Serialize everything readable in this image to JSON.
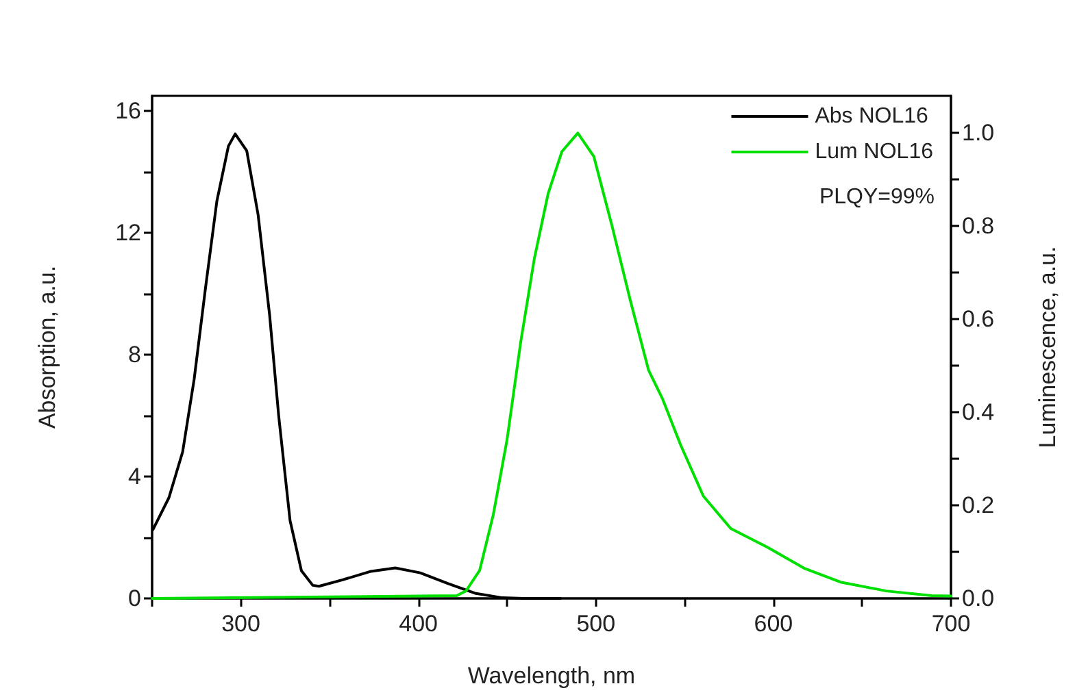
{
  "chart_data": {
    "type": "line",
    "xlabel": "Wavelength, nm",
    "ylabel": "Absorption, a.u.",
    "y2label": "Luminescence, a.u.",
    "annotations": [
      "PLQY=99%"
    ],
    "xlim": [
      250,
      700
    ],
    "xticks": [
      {
        "value": 250,
        "label": null
      },
      300,
      {
        "value": 350,
        "label": null
      },
      400,
      {
        "value": 450,
        "label": null
      },
      500,
      {
        "value": 550,
        "label": null
      },
      600,
      {
        "value": 650,
        "label": null
      },
      700
    ],
    "ylim": [
      0,
      16.5
    ],
    "yticks": [
      0,
      {
        "value": 2,
        "label": null
      },
      4,
      {
        "value": 6,
        "label": null
      },
      8,
      {
        "value": 10,
        "label": null
      },
      12,
      {
        "value": 14,
        "label": null
      },
      16
    ],
    "y2lim": [
      0,
      1.08
    ],
    "y2ticks": [
      {
        "value": 0,
        "label": "0.0"
      },
      {
        "value": 0.1,
        "label": null
      },
      {
        "value": 0.2,
        "label": "0.2"
      },
      {
        "value": 0.3,
        "label": null
      },
      {
        "value": 0.4,
        "label": "0.4"
      },
      {
        "value": 0.5,
        "label": null
      },
      {
        "value": 0.6,
        "label": "0.6"
      },
      {
        "value": 0.7,
        "label": null
      },
      {
        "value": 0.8,
        "label": "0.8"
      },
      {
        "value": 0.9,
        "label": null
      },
      {
        "value": 1.0,
        "label": "1.0"
      }
    ],
    "legend": "top right",
    "grid": false,
    "marker": "none",
    "line_style": "solid",
    "series": [
      {
        "name": "Abs NOL16",
        "color": "#000000",
        "x": [
          250.5,
          259.5,
          267.2,
          273.7,
          280.1,
          286.5,
          293,
          296.8,
          303.3,
          309.7,
          316.2,
          321.3,
          327.7,
          334.1,
          340.5,
          344,
          357.3,
          372.7,
          387,
          401,
          416.5,
          431.9,
          447.3,
          460,
          480
        ],
        "values": [
          2.26,
          3.31,
          4.81,
          7.2,
          10.2,
          13.05,
          14.85,
          15.25,
          14.7,
          12.6,
          9.3,
          6.0,
          2.56,
          0.91,
          0.43,
          0.4,
          0.61,
          0.88,
          1.0,
          0.84,
          0.49,
          0.17,
          0.02,
          0,
          0
        ]
      },
      {
        "name": "Lum NOL16",
        "color": "#00e000",
        "axis": "y2",
        "x": [
          250,
          400,
          421.6,
          426.8,
          434.5,
          442.2,
          449.9,
          457.6,
          465.3,
          473.1,
          480.8,
          489.8,
          498.8,
          509.1,
          519.4,
          529.7,
          537.4,
          547.7,
          560.5,
          576,
          596.6,
          617.2,
          637.8,
          663.5,
          689.2,
          700
        ],
        "values": [
          0,
          0.005,
          0.006,
          0.016,
          0.06,
          0.18,
          0.34,
          0.55,
          0.73,
          0.87,
          0.96,
          1.0,
          0.95,
          0.8,
          0.64,
          0.49,
          0.43,
          0.33,
          0.22,
          0.15,
          0.11,
          0.065,
          0.035,
          0.016,
          0.006,
          0.005
        ]
      }
    ]
  }
}
